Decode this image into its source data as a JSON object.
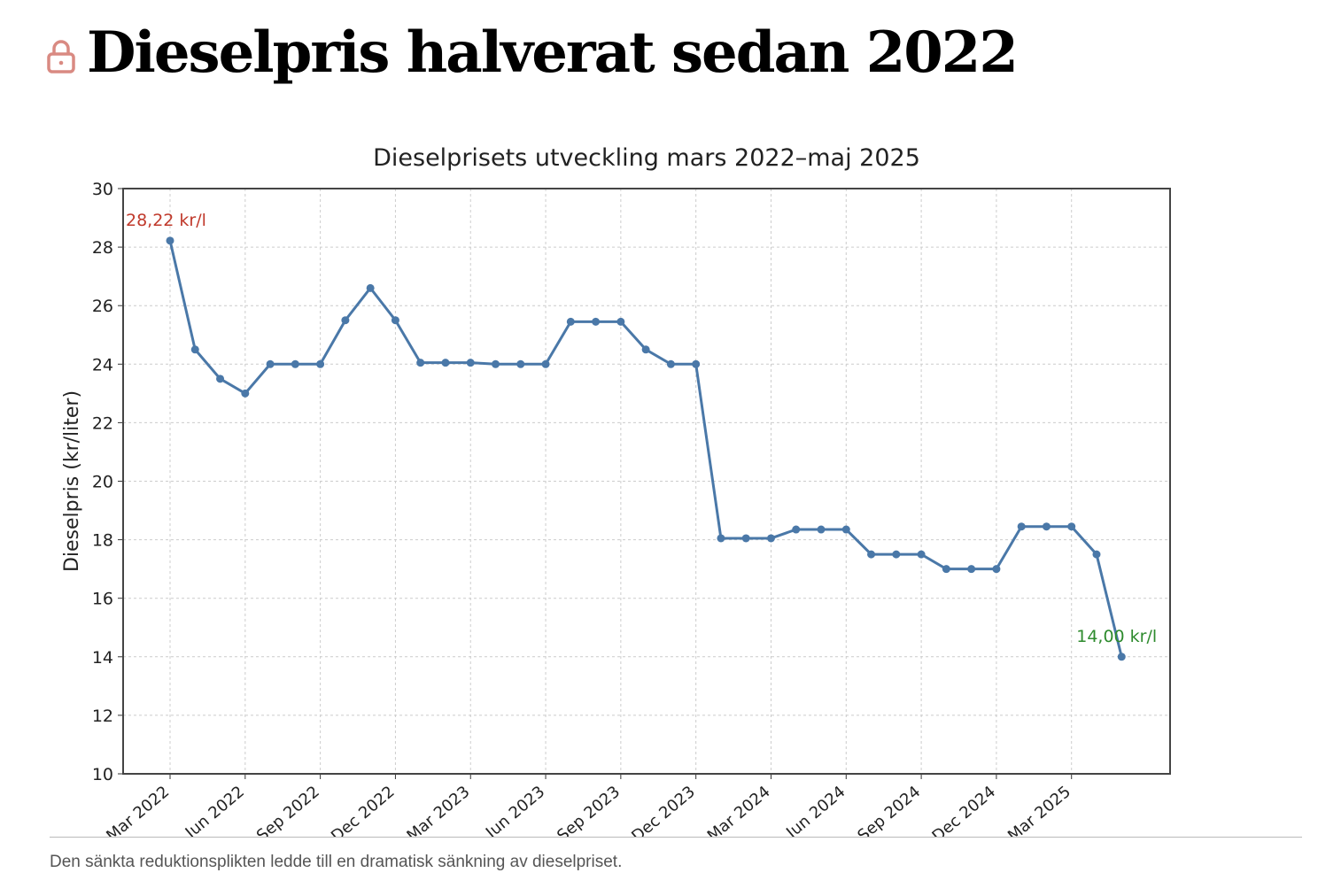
{
  "headline": {
    "title": "Dieselpris halverat sedan 2022",
    "icon": "lock-icon",
    "icon_color": "#d98a82"
  },
  "caption": "Den sänkta reduktionsplikten ledde till en dramatisk sänkning av dieselpriset.",
  "chart_data": {
    "type": "line",
    "title": "Dieselprisets utveckling mars 2022–maj 2025",
    "xlabel": "",
    "ylabel": "Dieselpris (kr/liter)",
    "ylim": [
      10,
      30
    ],
    "yticks": [
      "10",
      "12",
      "14",
      "16",
      "18",
      "20",
      "22",
      "24",
      "26",
      "28",
      "30"
    ],
    "xticks": [
      "Mar 2022",
      "Jun 2022",
      "Sep 2022",
      "Dec 2022",
      "Mar 2023",
      "Jun 2023",
      "Sep 2023",
      "Dec 2023",
      "Mar 2024",
      "Jun 2024",
      "Sep 2024",
      "Dec 2024",
      "Mar 2025"
    ],
    "grid": true,
    "x_start": "Mar 2022",
    "x_unit": "month",
    "series": [
      {
        "name": "Dieselpris",
        "color": "#4a78a8",
        "values": [
          28.22,
          24.5,
          23.5,
          23.0,
          24.0,
          24.0,
          24.0,
          25.5,
          26.6,
          25.5,
          24.05,
          24.05,
          24.05,
          24.0,
          24.0,
          24.0,
          25.45,
          25.45,
          25.45,
          24.5,
          24.0,
          24.0,
          18.05,
          18.05,
          18.05,
          18.35,
          18.35,
          18.35,
          17.5,
          17.5,
          17.5,
          17.0,
          17.0,
          17.0,
          18.45,
          18.45,
          18.45,
          17.5,
          14.0
        ]
      }
    ],
    "annotations": [
      {
        "text": "28,22 kr/l",
        "color": "#c0392b",
        "index": 0
      },
      {
        "text": "14,00 kr/l",
        "color": "#2e8b2e",
        "index": 38
      }
    ]
  }
}
